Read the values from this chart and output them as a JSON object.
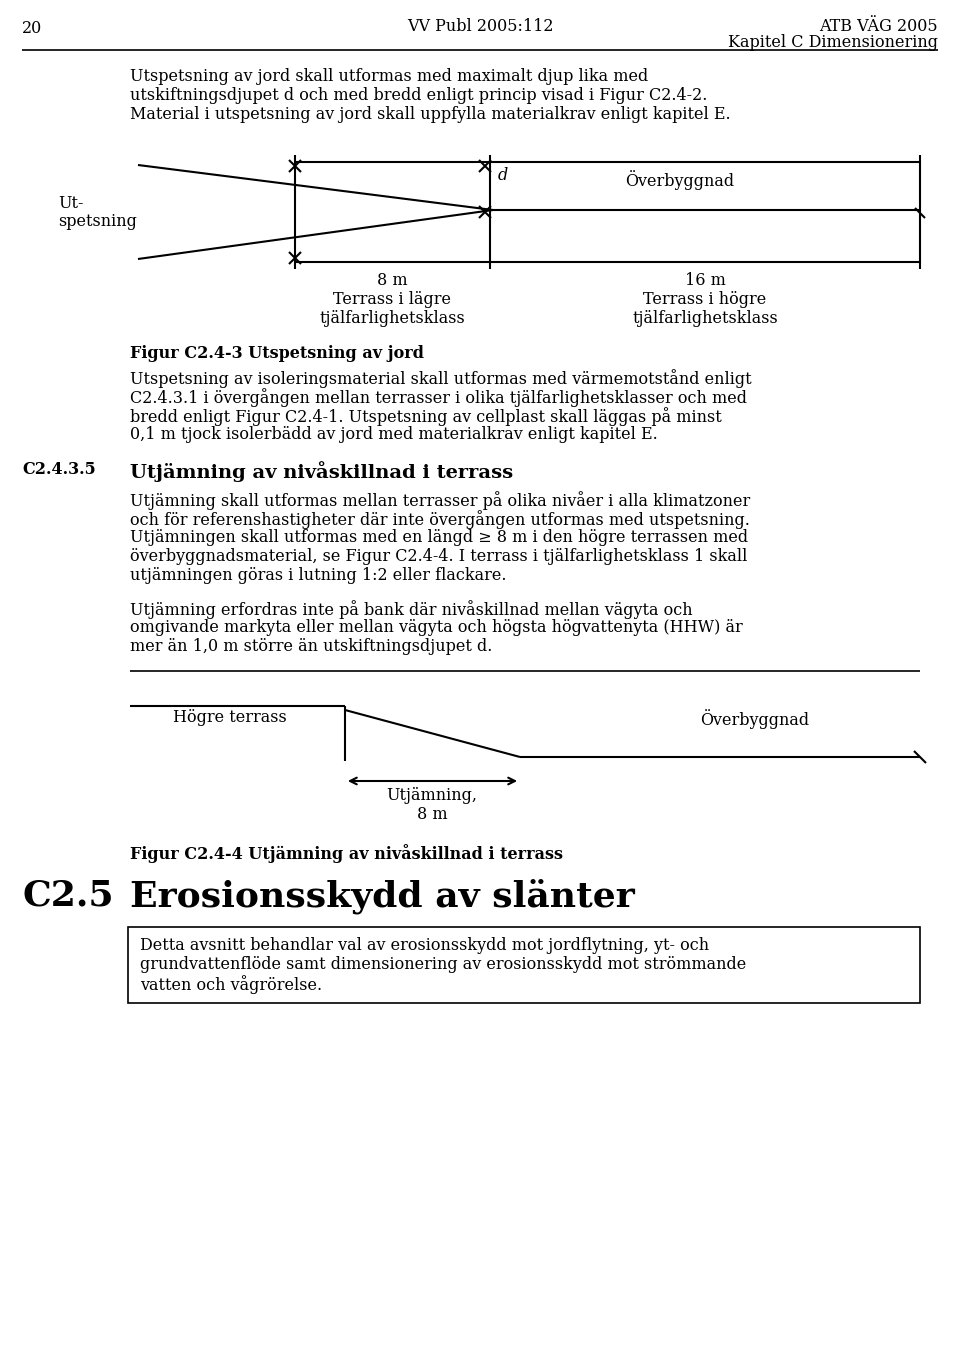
{
  "page_number": "20",
  "header_center": "VV Publ 2005:112",
  "header_right_line1": "ATB VÄG 2005",
  "header_right_line2": "Kapitel C Dimensionering",
  "para1_line1": "Utspetsning av jord skall utformas med maximalt djup lika med",
  "para1_line2": "utskiftningsdjupet d och med bredd enligt princip visad i Figur C2.4-2.",
  "para1_line3": "Material i utspetsning av jord skall uppfylla materialkrav enligt kapitel E.",
  "fig1_label_left1": "Ut-",
  "fig1_label_left2": "spetsning",
  "fig1_label_d": "d",
  "fig1_label_overbyggnad": "Överbyggnad",
  "fig1_label_8m_line1": "8 m",
  "fig1_label_8m_line2": "Terrass i lägre",
  "fig1_label_8m_line3": "tjälfarlighetsklass",
  "fig1_label_16m_line1": "16 m",
  "fig1_label_16m_line2": "Terrass i högre",
  "fig1_label_16m_line3": "tjälfarlighetsklass",
  "fig1_caption": "Figur C2.4-3 Utspetsning av jord",
  "para2_line1": "Utspetsning av isoleringsmaterial skall utformas med värmemotstånd enligt",
  "para2_line2": "C2.4.3.1 i övergången mellan terrasser i olika tjälfarlighetsklasser och med",
  "para2_line3": "bredd enligt Figur C2.4-1. Utspetsning av cellplast skall läggas på minst",
  "para2_line4": "0,1 m tjock isolerbädd av jord med materialkrav enligt kapitel E.",
  "section_num": "C2.4.3.5",
  "section_title": "Utjämning av nivåskillnad i terrass",
  "para3_line1": "Utjämning skall utformas mellan terrasser på olika nivåer i alla klimatzoner",
  "para3_line2": "och för referenshastigheter där inte övergången utformas med utspetsning.",
  "para3_line3": "Utjämningen skall utformas med en längd ≥ 8 m i den högre terrassen med",
  "para3_line4": "överbyggnadsmaterial, se Figur C2.4-4. I terrass i tjälfarlighetsklass 1 skall",
  "para3_line5": "utjämningen göras i lutning 1:2 eller flackare.",
  "para4_line1": "Utjämning erfordras inte på bank där nivåskillnad mellan vägyta och",
  "para4_line2": "omgivande markyta eller mellan vägyta och högsta högvattenyta (HHW) är",
  "para4_line3": "mer än 1,0 m större än utskiftningsdjupet d.",
  "fig2_label_hogre": "Högre terrass",
  "fig2_label_overbyggnad": "Överbyggnad",
  "fig2_label_utjamning1": "Utjämning,",
  "fig2_label_utjamning2": "8 m",
  "fig2_caption": "Figur C2.4-4 Utjämning av nivåskillnad i terrass",
  "section2_num": "C2.5",
  "section2_title": "Erosionsskydd av slänter",
  "para5_line1": "Detta avsnitt behandlar val av erosionsskydd mot jordflytning, yt- och",
  "para5_line2": "grundvattenflöde samt dimensionering av erosionsskydd mot strömmande",
  "para5_line3": "vatten och vågrörelse.",
  "bg_color": "#ffffff",
  "text_color": "#000000"
}
